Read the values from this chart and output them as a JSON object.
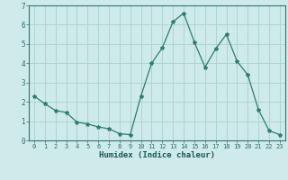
{
  "x": [
    0,
    1,
    2,
    3,
    4,
    5,
    6,
    7,
    8,
    9,
    10,
    11,
    12,
    13,
    14,
    15,
    16,
    17,
    18,
    19,
    20,
    21,
    22,
    23
  ],
  "y": [
    2.3,
    1.9,
    1.55,
    1.45,
    0.95,
    0.85,
    0.7,
    0.6,
    0.35,
    0.3,
    2.3,
    4.0,
    4.8,
    6.15,
    6.6,
    5.1,
    3.8,
    4.75,
    5.5,
    4.1,
    3.4,
    1.6,
    0.5,
    0.3
  ],
  "line_color": "#2e7d6e",
  "marker": "*",
  "marker_size": 3,
  "bg_color": "#ceeaea",
  "grid_color": "#aed4d4",
  "xlabel": "Humidex (Indice chaleur)",
  "xlim": [
    -0.5,
    23.5
  ],
  "ylim": [
    0,
    7
  ],
  "yticks": [
    0,
    1,
    2,
    3,
    4,
    5,
    6,
    7
  ],
  "xticks": [
    0,
    1,
    2,
    3,
    4,
    5,
    6,
    7,
    8,
    9,
    10,
    11,
    12,
    13,
    14,
    15,
    16,
    17,
    18,
    19,
    20,
    21,
    22,
    23
  ],
  "tick_color": "#2e6e6e",
  "label_color": "#1a5555",
  "axis_color": "#3a7070",
  "xlabel_fontsize": 6.5,
  "tick_fontsize": 5.0
}
